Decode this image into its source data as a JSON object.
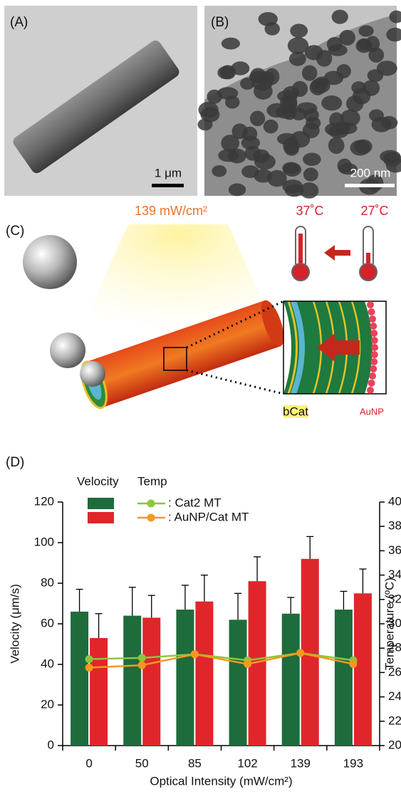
{
  "panels": {
    "a": {
      "label": "(A)",
      "scale": "1 μm"
    },
    "b": {
      "label": "(B)",
      "scale": "200 nm"
    },
    "c": {
      "label": "(C)",
      "intensity": "139 mW/cm²",
      "temp_hot": "37˚C",
      "temp_cold": "27˚C",
      "bcat": "bCat",
      "aunp": "AuNP"
    },
    "d": {
      "label": "(D)"
    }
  },
  "chart_data": {
    "type": "bar",
    "legend_headers": [
      "Velocity",
      "Temp"
    ],
    "x_label": "Optical Intensity (mW/cm²)",
    "y_label": "Velocity (μm/s)",
    "y2_label": "Temperature (ºC)",
    "categories": [
      "0",
      "50",
      "85",
      "102",
      "139",
      "193"
    ],
    "ylim": [
      0,
      120
    ],
    "yticks": [
      0,
      20,
      40,
      60,
      80,
      100,
      120
    ],
    "y2lim": [
      20,
      40
    ],
    "y2ticks": [
      20,
      22,
      24,
      26,
      28,
      30,
      32,
      34,
      36,
      38,
      40
    ],
    "series": [
      {
        "name": ": Cat2 MT",
        "type": "bar",
        "color": "#1e6b3c",
        "values": [
          66,
          64,
          67,
          62,
          65,
          67
        ],
        "errors": [
          11,
          14,
          12,
          13,
          8,
          9
        ]
      },
      {
        "name": ": AuNP/Cat MT",
        "type": "bar",
        "color": "#e0262b",
        "values": [
          53,
          63,
          71,
          81,
          92,
          75
        ],
        "errors": [
          12,
          11,
          13,
          12,
          11,
          12
        ]
      },
      {
        "name": ": Cat2 MT",
        "type": "line",
        "axis": "y2",
        "color": "#8cc63f",
        "values": [
          27.1,
          27.2,
          27.5,
          27.0,
          27.6,
          27.0
        ]
      },
      {
        "name": ": AuNP/Cat MT",
        "type": "line",
        "axis": "y2",
        "color": "#f39a1e",
        "values": [
          26.4,
          26.6,
          27.5,
          26.7,
          27.6,
          26.7
        ]
      }
    ]
  }
}
